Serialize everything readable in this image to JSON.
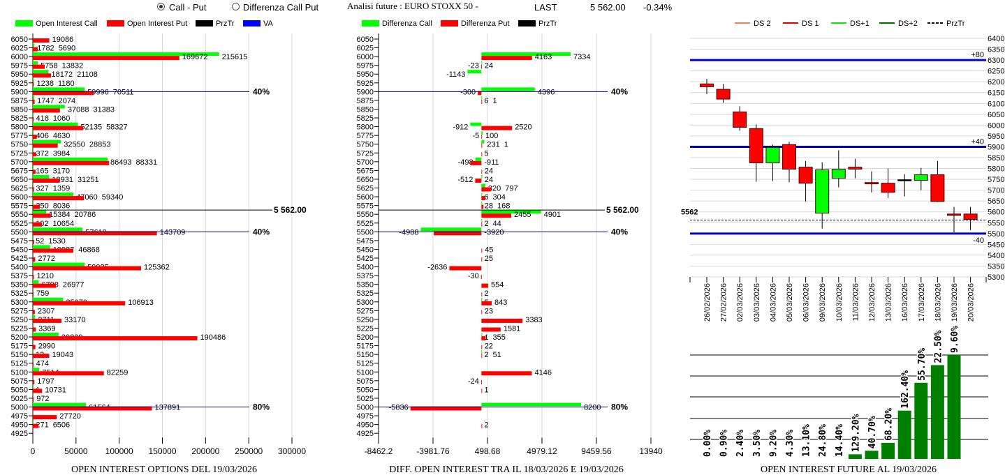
{
  "header": {
    "radio_call_put": "Call - Put",
    "radio_diff": "Differenza Call Put",
    "selected": "Call - Put",
    "title": "Analisi future : EURO STOXX 50 -",
    "last_label": "LAST",
    "last_value": "5 562.00",
    "change": "-0.34%"
  },
  "colors": {
    "call": "#00ff00",
    "put": "#ff0000",
    "prztr": "#000000",
    "va": "#0000ff",
    "level": "#0000cc",
    "future_bar": "#007f00"
  },
  "left_chart": {
    "legend": [
      "Open Interest Call",
      "Open Interest Put",
      "PrzTr",
      "VA"
    ],
    "caption": "OPEN INTEREST OPTIONS DEL 19/03/2026",
    "x_ticks": [
      "0",
      "50000",
      "100000",
      "150000",
      "200000",
      "250000",
      "300000"
    ],
    "xlim": [
      0,
      300000
    ],
    "prztr": {
      "value": 5562,
      "label": "5 562.00"
    },
    "va_lines": [
      {
        "strike": 5900,
        "label": "40%"
      },
      {
        "strike": 5500,
        "label": "40%"
      },
      {
        "strike": 5000,
        "label": "80%"
      }
    ],
    "rows": [
      {
        "strike": "6050",
        "call": null,
        "put": 19086
      },
      {
        "strike": "6025",
        "call": 1782,
        "put": 5690
      },
      {
        "strike": "6000",
        "call": 215615,
        "put": 169672
      },
      {
        "strike": "5975",
        "call": 5758,
        "put": 13832
      },
      {
        "strike": "5950",
        "call": 18172,
        "put": 21108
      },
      {
        "strike": "5925",
        "call": 1238,
        "put": 1180
      },
      {
        "strike": "5900",
        "call": 59996,
        "put": 70511
      },
      {
        "strike": "5875",
        "call": 1747,
        "put": 2074
      },
      {
        "strike": "5850",
        "call": 37088,
        "put": 31383
      },
      {
        "strike": "5825",
        "call": 418,
        "put": 1060
      },
      {
        "strike": "5800",
        "call": 52135,
        "put": 58327
      },
      {
        "strike": "5775",
        "call": 406,
        "put": 4630
      },
      {
        "strike": "5750",
        "call": 32550,
        "put": 28853
      },
      {
        "strike": "5725",
        "call": 372,
        "put": 3984
      },
      {
        "strike": "5700",
        "call": 86493,
        "put": 88331
      },
      {
        "strike": "5675",
        "call": 165,
        "put": 3170
      },
      {
        "strike": "5650",
        "call": 18931,
        "put": 31251
      },
      {
        "strike": "5625",
        "call": 327,
        "put": 1359
      },
      {
        "strike": "5600",
        "call": 47060,
        "put": 59340
      },
      {
        "strike": "5575",
        "call": 350,
        "put": 8036
      },
      {
        "strike": "5550",
        "call": 15384,
        "put": 20786
      },
      {
        "strike": "5525",
        "call": 102,
        "put": 10654
      },
      {
        "strike": "5500",
        "call": 57619,
        "put": 143709
      },
      {
        "strike": "5475",
        "call": 52,
        "put": 1530
      },
      {
        "strike": "5450",
        "call": 19987,
        "put": 46868
      },
      {
        "strike": "5425",
        "call": null,
        "put": 2772
      },
      {
        "strike": "5400",
        "call": 59925,
        "put": 125362
      },
      {
        "strike": "5375",
        "call": null,
        "put": 1210
      },
      {
        "strike": "5350",
        "call": 6798,
        "put": 26977
      },
      {
        "strike": "5325",
        "call": null,
        "put": 759
      },
      {
        "strike": "5300",
        "call": 35070,
        "put": 106913
      },
      {
        "strike": "5275",
        "call": null,
        "put": 2307
      },
      {
        "strike": "5250",
        "call": 2711,
        "put": 33170
      },
      {
        "strike": "5225",
        "call": null,
        "put": 3369
      },
      {
        "strike": "5200",
        "call": 29829,
        "put": 190486
      },
      {
        "strike": "5175",
        "call": null,
        "put": 2990
      },
      {
        "strike": "5150",
        "call": 13,
        "put": 19043
      },
      {
        "strike": "5125",
        "call": null,
        "put": 474
      },
      {
        "strike": "5100",
        "call": 7514,
        "put": 82259
      },
      {
        "strike": "5075",
        "call": null,
        "put": 1797
      },
      {
        "strike": "5050",
        "call": 1,
        "put": 10731
      },
      {
        "strike": "5025",
        "call": null,
        "put": 972
      },
      {
        "strike": "5000",
        "call": 61564,
        "put": 137891
      },
      {
        "strike": "4975",
        "call": null,
        "put": 27720
      },
      {
        "strike": "4950",
        "call": 271,
        "put": 6506
      },
      {
        "strike": "4925",
        "call": null,
        "put": null
      }
    ]
  },
  "middle_chart": {
    "legend": [
      "Differenza Call",
      "Differenza Put",
      "PrzTr"
    ],
    "caption": "DIFF. OPEN INTEREST TRA IL 18/03/2026 E 19/03/2026",
    "x_ticks": [
      "-8462.2",
      "-3981.76",
      "498.68",
      "4979.12",
      "9459.56",
      "13940"
    ],
    "xlim": [
      -8462.2,
      13940
    ],
    "prztr": {
      "value": 5562,
      "label": "5 562.00"
    },
    "va_lines": [
      {
        "strike": 5900,
        "label": "40%"
      },
      {
        "strike": 5500,
        "label": "40%"
      },
      {
        "strike": 5000,
        "label": "80%"
      }
    ],
    "rows": [
      {
        "strike": "6050",
        "call": null,
        "put": null
      },
      {
        "strike": "6025",
        "call": null,
        "put": null
      },
      {
        "strike": "6000",
        "call": 7334,
        "put": 4163
      },
      {
        "strike": "5975",
        "call": 24,
        "put": -23
      },
      {
        "strike": "5950",
        "call": -1143,
        "put": null
      },
      {
        "strike": "5925",
        "call": null,
        "put": null
      },
      {
        "strike": "5900",
        "call": 4396,
        "put": -300
      },
      {
        "strike": "5875",
        "call": 6,
        "put": 1
      },
      {
        "strike": "5850",
        "call": null,
        "put": null
      },
      {
        "strike": "5825",
        "call": null,
        "put": null
      },
      {
        "strike": "5800",
        "call": -912,
        "put": 2520
      },
      {
        "strike": "5775",
        "call": 100,
        "put": -5
      },
      {
        "strike": "5750",
        "call": 231,
        "put": 1
      },
      {
        "strike": "5725",
        "call": null,
        "put": 5
      },
      {
        "strike": "5700",
        "call": -498,
        "put": -911
      },
      {
        "strike": "5675",
        "call": null,
        "put": 24
      },
      {
        "strike": "5650",
        "call": 24,
        "put": -512
      },
      {
        "strike": "5625",
        "call": 320,
        "put": 797
      },
      {
        "strike": "5600",
        "call": 6,
        "put": 304
      },
      {
        "strike": "5575",
        "call": 28,
        "put": 168
      },
      {
        "strike": "5550",
        "call": 4901,
        "put": 2455
      },
      {
        "strike": "5525",
        "call": 2,
        "put": 44
      },
      {
        "strike": "5500",
        "call": -4988,
        "put": -3920
      },
      {
        "strike": "5475",
        "call": null,
        "put": null
      },
      {
        "strike": "5450",
        "call": null,
        "put": 45
      },
      {
        "strike": "5425",
        "call": null,
        "put": 25
      },
      {
        "strike": "5400",
        "call": null,
        "put": -2636
      },
      {
        "strike": "5375",
        "call": null,
        "put": -30
      },
      {
        "strike": "5350",
        "call": null,
        "put": 554
      },
      {
        "strike": "5325",
        "call": null,
        "put": 2
      },
      {
        "strike": "5300",
        "call": 5,
        "put": 843
      },
      {
        "strike": "5275",
        "call": null,
        "put": 23
      },
      {
        "strike": "5250",
        "call": null,
        "put": 3383
      },
      {
        "strike": "5225",
        "call": null,
        "put": 1581
      },
      {
        "strike": "5200",
        "call": 1,
        "put": 355
      },
      {
        "strike": "5175",
        "call": null,
        "put": 22
      },
      {
        "strike": "5150",
        "call": 2,
        "put": 51
      },
      {
        "strike": "5125",
        "call": null,
        "put": null
      },
      {
        "strike": "5100",
        "call": null,
        "put": 4146
      },
      {
        "strike": "5075",
        "call": null,
        "put": -24
      },
      {
        "strike": "5050",
        "call": null,
        "put": 1
      },
      {
        "strike": "5025",
        "call": null,
        "put": null
      },
      {
        "strike": "5000",
        "call": 8200,
        "put": -5836
      },
      {
        "strike": "4975",
        "call": null,
        "put": null
      },
      {
        "strike": "4950",
        "call": null,
        "put": 2
      },
      {
        "strike": "4925",
        "call": null,
        "put": null
      }
    ]
  },
  "chart_data": [
    {
      "type": "bar",
      "title": "OPEN INTEREST OPTIONS DEL 19/03/2026",
      "orientation": "horizontal",
      "series_ref": "left_chart.rows",
      "series": [
        {
          "name": "Open Interest Call"
        },
        {
          "name": "Open Interest Put"
        }
      ],
      "xlim": [
        0,
        300000
      ],
      "grid": true,
      "legend": "top"
    },
    {
      "type": "bar",
      "title": "DIFF. OPEN INTEREST TRA IL 18/03/2026 E 19/03/2026",
      "orientation": "horizontal",
      "series_ref": "middle_chart.rows",
      "series": [
        {
          "name": "Differenza Call"
        },
        {
          "name": "Differenza Put"
        }
      ],
      "xlim": [
        -8462.2,
        13940
      ],
      "grid": true,
      "legend": "top"
    },
    {
      "type": "candlestick",
      "ylim": [
        5300,
        6400
      ],
      "grid": true,
      "legend": "top",
      "series_ref": "candle_chart.candles"
    },
    {
      "type": "bar",
      "title": "OPEN INTEREST FUTURE AL 19/03/2026",
      "series_ref": "future_chart"
    }
  ],
  "candle_chart": {
    "legend": [
      {
        "label": "DS 2",
        "color": "#f08060",
        "dashed": false
      },
      {
        "label": "DS 1",
        "color": "#e00000",
        "dashed": false
      },
      {
        "label": "DS+1",
        "color": "#00ee00",
        "dashed": false
      },
      {
        "label": "DS+2",
        "color": "#007000",
        "dashed": false
      },
      {
        "label": "PrzTr",
        "color": "#000000",
        "dashed": true
      }
    ],
    "y_ticks": [
      "6400",
      "6350",
      "6300",
      "6250",
      "6200",
      "6150",
      "6100",
      "6050",
      "6000",
      "5950",
      "5900",
      "5850",
      "5800",
      "5750",
      "5700",
      "5650",
      "5600",
      "5550",
      "5500",
      "5450",
      "5400",
      "5350",
      "5300"
    ],
    "ylim": [
      5300,
      6400
    ],
    "levels": [
      {
        "value": 6300,
        "label": "+80"
      },
      {
        "value": 5900,
        "label": "+40"
      },
      {
        "value": 5500,
        "label": "-40"
      }
    ],
    "prztr": {
      "value": 5562,
      "label": "5562"
    },
    "candles": [
      {
        "date": "26/02/2026",
        "o": 6190,
        "h": 6213,
        "l": 6143,
        "c": 6177
      },
      {
        "date": "27/02/2026",
        "o": 6165,
        "h": 6190,
        "l": 6103,
        "c": 6120
      },
      {
        "date": "02/03/2026",
        "o": 6061,
        "h": 6087,
        "l": 5974,
        "c": 5990
      },
      {
        "date": "03/03/2026",
        "o": 5984,
        "h": 6003,
        "l": 5739,
        "c": 5826
      },
      {
        "date": "04/03/2026",
        "o": 5826,
        "h": 5910,
        "l": 5742,
        "c": 5897
      },
      {
        "date": "05/03/2026",
        "o": 5910,
        "h": 5923,
        "l": 5736,
        "c": 5797
      },
      {
        "date": "06/03/2026",
        "o": 5806,
        "h": 5835,
        "l": 5648,
        "c": 5732
      },
      {
        "date": "09/03/2026",
        "o": 5594,
        "h": 5829,
        "l": 5523,
        "c": 5794
      },
      {
        "date": "10/03/2026",
        "o": 5755,
        "h": 5884,
        "l": 5713,
        "c": 5797
      },
      {
        "date": "11/03/2026",
        "o": 5806,
        "h": 5845,
        "l": 5755,
        "c": 5797
      },
      {
        "date": "12/03/2026",
        "o": 5735,
        "h": 5787,
        "l": 5690,
        "c": 5729
      },
      {
        "date": "13/03/2026",
        "o": 5732,
        "h": 5800,
        "l": 5664,
        "c": 5690
      },
      {
        "date": "16/03/2026",
        "o": 5748,
        "h": 5774,
        "l": 5671,
        "c": 5748
      },
      {
        "date": "17/03/2026",
        "o": 5745,
        "h": 5803,
        "l": 5700,
        "c": 5771
      },
      {
        "date": "18/03/2026",
        "o": 5771,
        "h": 5835,
        "l": 5645,
        "c": 5648
      },
      {
        "date": "19/03/2026",
        "o": 5590,
        "h": 5623,
        "l": 5506,
        "c": 5584
      },
      {
        "date": "20/03/2026",
        "o": 5590,
        "h": 5623,
        "l": 5516,
        "c": 5565
      }
    ]
  },
  "future_chart": {
    "caption": "OPEN INTEREST FUTURE AL 19/03/2026",
    "bars": [
      {
        "label": "0.00%",
        "level": 0
      },
      {
        "label": "0.90%",
        "level": 0
      },
      {
        "label": "2.40%",
        "level": 0
      },
      {
        "label": "3.50%",
        "level": 0
      },
      {
        "label": "9.20%",
        "level": 0
      },
      {
        "label": "4.30%",
        "level": 0
      },
      {
        "label": "13.10%",
        "level": 0
      },
      {
        "label": "24.80%",
        "level": 0
      },
      {
        "label": "14.40%",
        "level": 0
      },
      {
        "label": "129.20%",
        "level": 0.045
      },
      {
        "label": "40.70%",
        "level": 0.079
      },
      {
        "label": "68.20%",
        "level": 0.155
      },
      {
        "label": "162.40%",
        "level": 0.465
      },
      {
        "label": "55.70%",
        "level": 0.733
      },
      {
        "label": "22.50%",
        "level": 0.903
      },
      {
        "label": "9.60%",
        "level": 1.0
      }
    ]
  }
}
